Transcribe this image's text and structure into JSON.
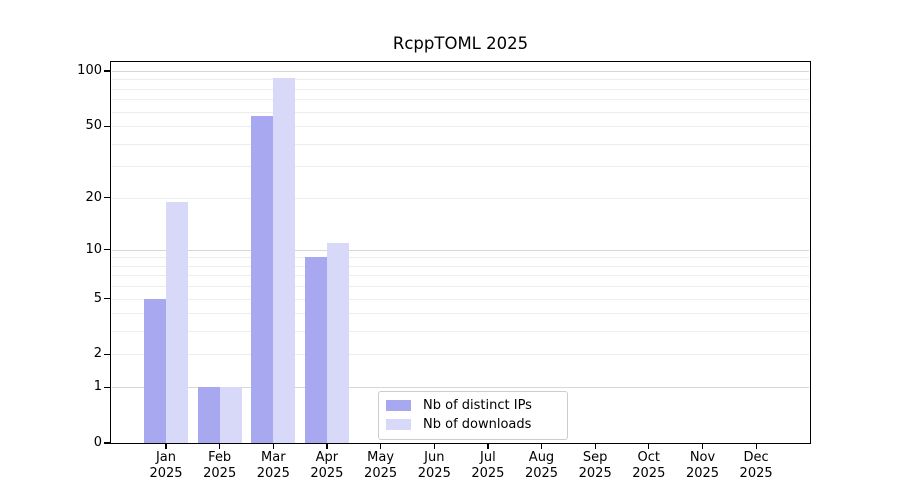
{
  "chart_data": {
    "type": "bar",
    "title": "RcppTOML 2025",
    "categories": [
      "Jan",
      "Feb",
      "Mar",
      "Apr",
      "May",
      "Jun",
      "Jul",
      "Aug",
      "Sep",
      "Oct",
      "Nov",
      "Dec"
    ],
    "x_tick_year": "2025",
    "series": [
      {
        "name": "Nb of distinct IPs",
        "color": "#a8a8f0",
        "values": [
          5,
          1,
          57,
          9,
          0,
          0,
          0,
          0,
          0,
          0,
          0,
          0
        ]
      },
      {
        "name": "Nb of downloads",
        "color": "#d8d8f8",
        "values": [
          19,
          1,
          92,
          11,
          0,
          0,
          0,
          0,
          0,
          0,
          0,
          0
        ]
      }
    ],
    "y_axis": {
      "scale": "log1p",
      "tick_values": [
        0,
        1,
        2,
        5,
        10,
        20,
        50,
        100
      ],
      "range": [
        0,
        112
      ]
    },
    "grid": {
      "minor_values": [
        2,
        3,
        4,
        5,
        6,
        7,
        8,
        9,
        20,
        30,
        40,
        50,
        60,
        70,
        80,
        90
      ],
      "major_values": [
        1,
        10,
        100
      ],
      "orientation": "horizontal"
    },
    "legend": {
      "position": "inside-bottom-center"
    }
  }
}
